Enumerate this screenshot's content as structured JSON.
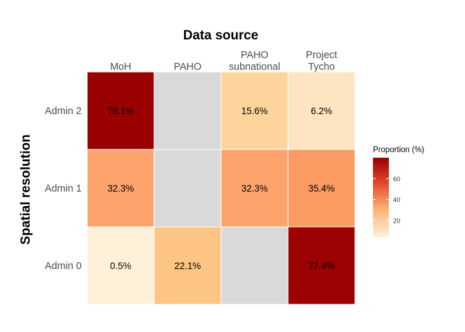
{
  "chart_data": {
    "type": "heatmap",
    "title": "Data source",
    "ylabel": "Spatial resolution",
    "columns": [
      [
        "MoH"
      ],
      [
        "PAHO"
      ],
      [
        "PAHO",
        "subnational"
      ],
      [
        "Project",
        "Tycho"
      ]
    ],
    "rows": [
      "Admin 2",
      "Admin 1",
      "Admin 0"
    ],
    "values": [
      [
        78.1,
        null,
        15.6,
        6.2
      ],
      [
        32.3,
        null,
        32.3,
        35.4
      ],
      [
        0.5,
        22.1,
        null,
        77.4
      ]
    ],
    "cell_labels": [
      [
        "78.1%",
        "",
        "15.6%",
        "6.2%"
      ],
      [
        "32.3%",
        "",
        "32.3%",
        "35.4%"
      ],
      [
        "0.5%",
        "22.1%",
        "",
        "77.4%"
      ]
    ],
    "missing_color": "#d9d9d9",
    "color_scale": {
      "palette": "OrRd",
      "low": "#fff0d9",
      "high": "#990000",
      "domain": [
        0.5,
        78.1
      ]
    },
    "legend": {
      "title": "Proportion (%)",
      "ticks": [
        20,
        40,
        60
      ],
      "placement": "right"
    }
  }
}
